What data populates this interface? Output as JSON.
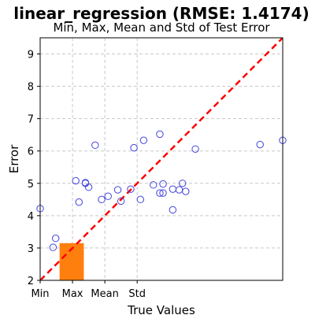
{
  "chart_data": {
    "type": "scatter",
    "title": "linear_regression (RMSE: 1.4174)",
    "subtitle": "Min, Max, Mean and Std of Test Error",
    "xlabel": "True Values",
    "ylabel": "Error",
    "xlim": [
      2,
      9.5
    ],
    "ylim": [
      2,
      9.5
    ],
    "grid": true,
    "x_ticks": [
      {
        "value": 2.0,
        "label": "Min"
      },
      {
        "value": 3.0,
        "label": "Max"
      },
      {
        "value": 4.0,
        "label": "Mean"
      },
      {
        "value": 5.0,
        "label": "Std"
      }
    ],
    "y_ticks": [
      2,
      3,
      4,
      5,
      6,
      7,
      8,
      9
    ],
    "bar": {
      "x_start": 2.6,
      "x_end": 3.35,
      "y_top": 3.15,
      "color": "#ff7f0e"
    },
    "reference_line": {
      "from": [
        2,
        2
      ],
      "to": [
        9.5,
        9.5
      ],
      "color": "#ff0000",
      "style": "dashed"
    },
    "marker_color": "#4444dd",
    "points": [
      {
        "x": 2.0,
        "y": 4.22
      },
      {
        "x": 2.4,
        "y": 3.02
      },
      {
        "x": 2.48,
        "y": 3.3
      },
      {
        "x": 3.1,
        "y": 5.08
      },
      {
        "x": 3.2,
        "y": 4.42
      },
      {
        "x": 3.4,
        "y": 5.02
      },
      {
        "x": 3.4,
        "y": 5.0
      },
      {
        "x": 3.5,
        "y": 4.88
      },
      {
        "x": 3.7,
        "y": 6.18
      },
      {
        "x": 3.9,
        "y": 4.5
      },
      {
        "x": 4.1,
        "y": 4.6
      },
      {
        "x": 4.4,
        "y": 4.8
      },
      {
        "x": 4.5,
        "y": 4.45
      },
      {
        "x": 4.8,
        "y": 4.82
      },
      {
        "x": 4.9,
        "y": 6.1
      },
      {
        "x": 5.1,
        "y": 4.5
      },
      {
        "x": 5.2,
        "y": 6.33
      },
      {
        "x": 5.5,
        "y": 4.95
      },
      {
        "x": 5.7,
        "y": 6.52
      },
      {
        "x": 5.7,
        "y": 4.7
      },
      {
        "x": 5.8,
        "y": 4.7
      },
      {
        "x": 5.8,
        "y": 4.98
      },
      {
        "x": 6.1,
        "y": 4.18
      },
      {
        "x": 6.1,
        "y": 4.82
      },
      {
        "x": 6.3,
        "y": 4.8
      },
      {
        "x": 6.4,
        "y": 5.0
      },
      {
        "x": 6.5,
        "y": 4.75
      },
      {
        "x": 6.8,
        "y": 6.06
      },
      {
        "x": 8.8,
        "y": 6.2
      },
      {
        "x": 9.5,
        "y": 6.33
      }
    ]
  }
}
